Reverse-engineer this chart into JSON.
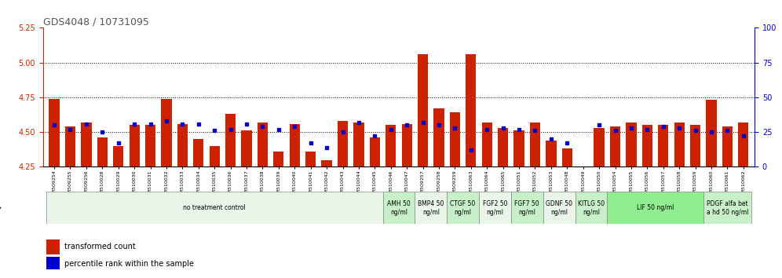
{
  "title": "GDS4048 / 10731095",
  "samples": [
    "GSM509254",
    "GSM509255",
    "GSM509256",
    "GSM510028",
    "GSM510029",
    "GSM510030",
    "GSM510031",
    "GSM510032",
    "GSM510033",
    "GSM510034",
    "GSM510035",
    "GSM510036",
    "GSM510037",
    "GSM510038",
    "GSM510039",
    "GSM510040",
    "GSM510041",
    "GSM510042",
    "GSM510043",
    "GSM510044",
    "GSM510045",
    "GSM510046",
    "GSM510047",
    "GSM509257",
    "GSM509258",
    "GSM509259",
    "GSM510063",
    "GSM510064",
    "GSM510065",
    "GSM510051",
    "GSM510052",
    "GSM510053",
    "GSM510048",
    "GSM510049",
    "GSM510050",
    "GSM510054",
    "GSM510055",
    "GSM510056",
    "GSM510057",
    "GSM510058",
    "GSM510059",
    "GSM510060",
    "GSM510061",
    "GSM510062"
  ],
  "red_values": [
    4.74,
    4.54,
    4.57,
    4.46,
    4.4,
    4.55,
    4.55,
    4.74,
    4.56,
    4.45,
    4.4,
    4.63,
    4.51,
    4.57,
    4.36,
    4.56,
    4.36,
    4.3,
    4.58,
    4.57,
    4.46,
    4.55,
    4.56,
    5.06,
    4.67,
    4.64,
    5.06,
    4.57,
    4.53,
    4.51,
    4.57,
    4.44,
    4.38,
    4.2,
    4.53,
    4.54,
    4.57,
    4.55,
    4.55,
    4.57,
    4.55,
    4.73,
    4.54,
    4.57
  ],
  "blue_values": [
    4.55,
    4.52,
    4.56,
    4.5,
    4.42,
    4.56,
    4.56,
    4.58,
    4.56,
    4.56,
    4.51,
    4.52,
    4.56,
    4.54,
    4.52,
    4.54,
    4.42,
    4.39,
    4.5,
    4.57,
    4.47,
    4.52,
    4.55,
    4.57,
    4.55,
    4.53,
    4.37,
    4.52,
    4.53,
    4.52,
    4.51,
    4.45,
    4.42,
    4.22,
    4.55,
    4.51,
    4.53,
    4.52,
    4.54,
    4.53,
    4.51,
    4.5,
    4.51,
    4.47
  ],
  "groups": [
    {
      "label": "no treatment control",
      "start": 0,
      "end": 21,
      "color": "#e8f5e8"
    },
    {
      "label": "AMH 50\nng/ml",
      "start": 21,
      "end": 23,
      "color": "#c8f0c8"
    },
    {
      "label": "BMP4 50\nng/ml",
      "start": 23,
      "end": 25,
      "color": "#e8f5e8"
    },
    {
      "label": "CTGF 50\nng/ml",
      "start": 25,
      "end": 27,
      "color": "#c8f0c8"
    },
    {
      "label": "FGF2 50\nng/ml",
      "start": 27,
      "end": 29,
      "color": "#e8f5e8"
    },
    {
      "label": "FGF7 50\nng/ml",
      "start": 29,
      "end": 31,
      "color": "#c8f0c8"
    },
    {
      "label": "GDNF 50\nng/ml",
      "start": 31,
      "end": 33,
      "color": "#e8f5e8"
    },
    {
      "label": "KITLG 50\nng/ml",
      "start": 33,
      "end": 35,
      "color": "#c8f0c8"
    },
    {
      "label": "LIF 50 ng/ml",
      "start": 35,
      "end": 41,
      "color": "#90ee90"
    },
    {
      "label": "PDGF alfa bet\na hd 50 ng/ml",
      "start": 41,
      "end": 44,
      "color": "#c8f0c8"
    }
  ],
  "ylim_left": [
    4.25,
    5.25
  ],
  "ylim_right": [
    0,
    100
  ],
  "yticks_left": [
    4.25,
    4.5,
    4.75,
    5.0,
    5.25
  ],
  "yticks_right": [
    0,
    25,
    50,
    75,
    100
  ],
  "hlines": [
    4.5,
    4.75,
    5.0
  ],
  "bar_color": "#cc2200",
  "dot_color": "#0000cc",
  "title_color": "#555555",
  "left_axis_color": "#cc2200",
  "right_axis_color": "#0000cc",
  "bar_width": 0.65
}
